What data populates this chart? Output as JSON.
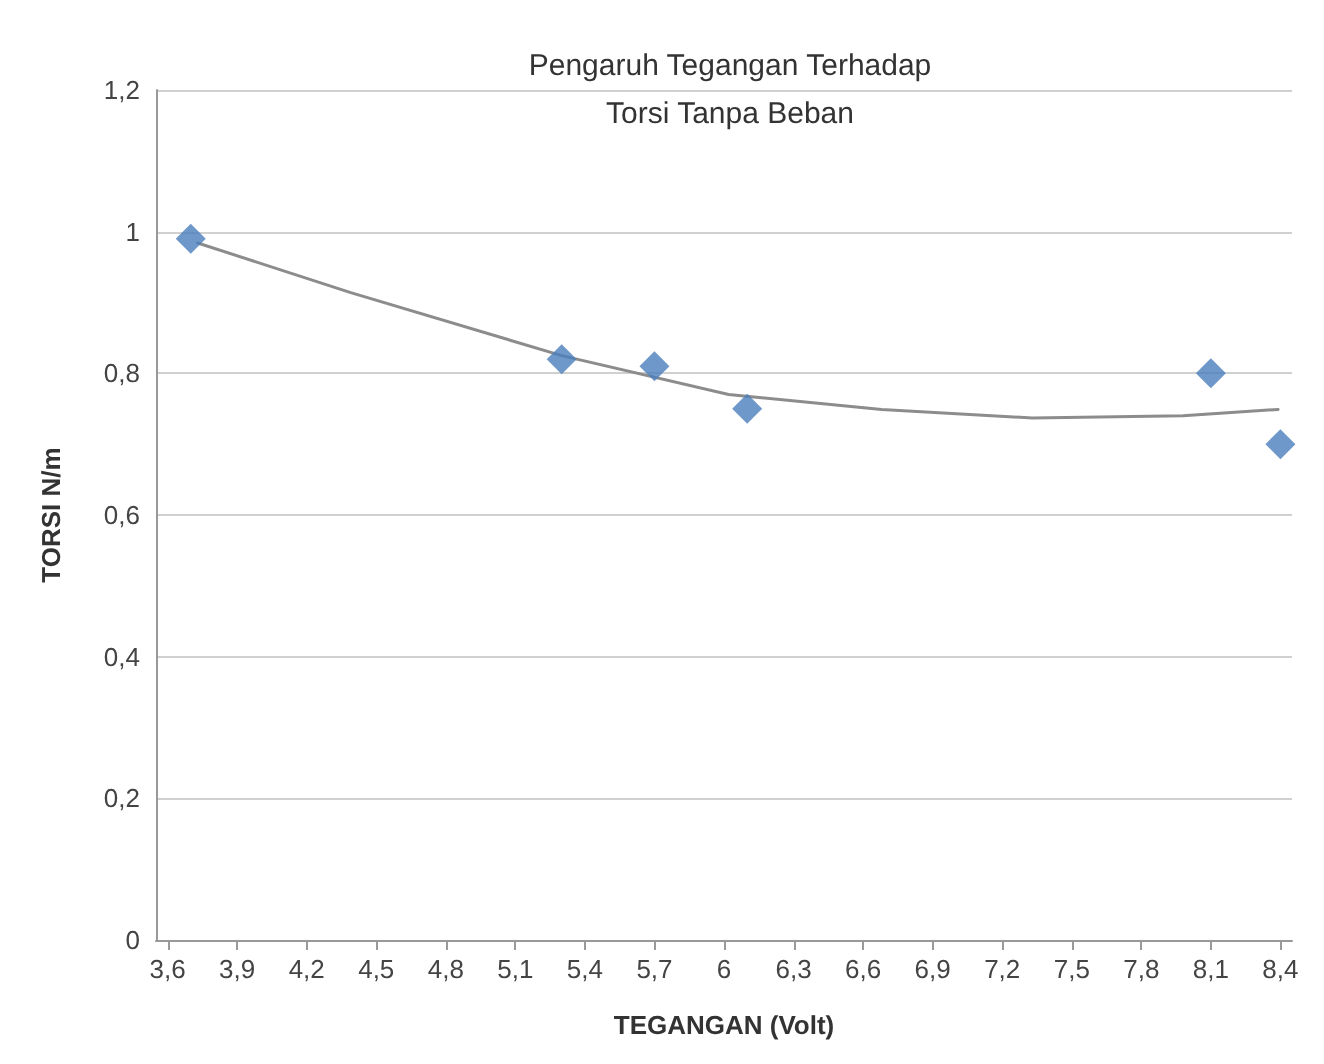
{
  "chart_data": {
    "type": "scatter",
    "title": "Pengaruh Tegangan Terhadap\nTorsi Tanpa Beban",
    "xlabel": "TEGANGAN (Volt)",
    "ylabel": "TORSI N/m",
    "xlim": [
      3.55,
      8.45
    ],
    "xticks": [
      {
        "value": 3.6,
        "label": "3,6"
      },
      {
        "value": 3.9,
        "label": "3,9"
      },
      {
        "value": 4.2,
        "label": "4,2"
      },
      {
        "value": 4.5,
        "label": "4,5"
      },
      {
        "value": 4.8,
        "label": "4,8"
      },
      {
        "value": 5.1,
        "label": "5,1"
      },
      {
        "value": 5.4,
        "label": "5,4"
      },
      {
        "value": 5.7,
        "label": "5,7"
      },
      {
        "value": 6,
        "label": "6"
      },
      {
        "value": 6.3,
        "label": "6,3"
      },
      {
        "value": 6.6,
        "label": "6,6"
      },
      {
        "value": 6.9,
        "label": "6,9"
      },
      {
        "value": 7.2,
        "label": "7,2"
      },
      {
        "value": 7.5,
        "label": "7,5"
      },
      {
        "value": 7.8,
        "label": "7,8"
      },
      {
        "value": 8.1,
        "label": "8,1"
      },
      {
        "value": 8.4,
        "label": "8,4"
      }
    ],
    "ylim": [
      0,
      1.2
    ],
    "yticks": [
      0,
      {
        "value": 0.2,
        "label": "0,2"
      },
      {
        "value": 0.4,
        "label": "0,4"
      },
      {
        "value": 0.6,
        "label": "0,6"
      },
      {
        "value": 0.8,
        "label": "0,8"
      },
      1,
      {
        "value": 1.2,
        "label": "1,2"
      }
    ],
    "grid": "y",
    "marker": "diamond",
    "series": [
      {
        "color": "#4a7ebb",
        "x": [
          3.7,
          5.3,
          5.7,
          6.1,
          8.1,
          8.4
        ],
        "values": [
          0.99,
          0.82,
          0.81,
          0.75,
          0.8,
          0.7
        ]
      },
      {
        "type": "line",
        "color": "#8c8c8c",
        "marker": "none",
        "x": [
          3.73,
          4.39,
          5.3,
          6.02,
          6.68,
          7.33,
          7.98,
          8.39
        ],
        "values": [
          0.984,
          0.914,
          0.825,
          0.77,
          0.749,
          0.737,
          0.74,
          0.749
        ]
      }
    ]
  }
}
